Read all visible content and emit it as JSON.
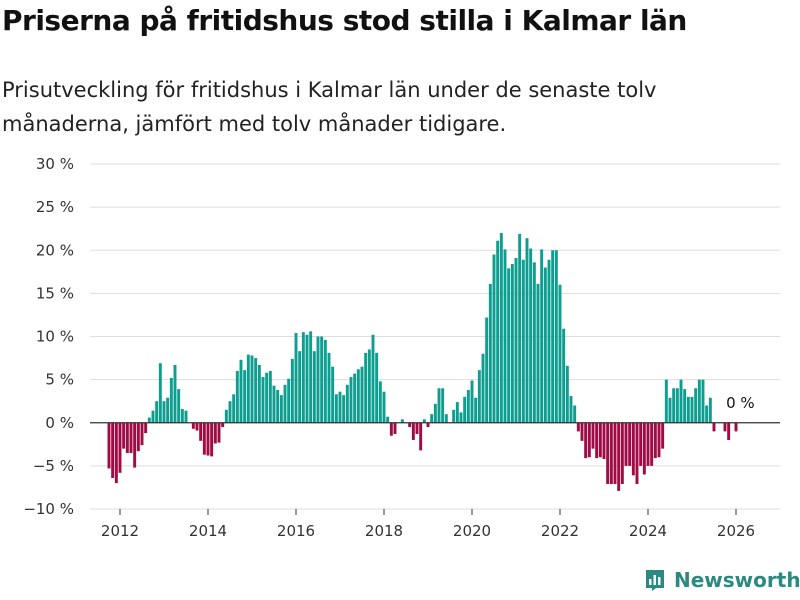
{
  "header": {
    "title": "Priserna på fritidshus stod stilla i Kalmar län",
    "subtitle": "Prisutveckling för fritidshus i Kalmar län under de senaste tolv månaderna, jämfört med tolv månader tidigare."
  },
  "brand": {
    "name": "Newsworthy",
    "icon": "bar-chart-logo-icon"
  },
  "chart_data": {
    "type": "bar",
    "title": "Priserna på fritidshus stod stilla i Kalmar län",
    "xlabel": "",
    "ylabel": "",
    "ylim": [
      -10,
      30
    ],
    "y_ticks": [
      -10,
      -5,
      0,
      5,
      10,
      15,
      20,
      25,
      30
    ],
    "y_tick_labels": [
      "−10 %",
      "−5 %",
      "0 %",
      "5 %",
      "10 %",
      "15 %",
      "20 %",
      "25 %",
      "30 %"
    ],
    "x_start": 2011.75,
    "x_step": 0.0833333,
    "x_ticks": [
      2012,
      2014,
      2016,
      2018,
      2020,
      2022,
      2024,
      2026
    ],
    "x_tick_labels": [
      "2012",
      "2014",
      "2016",
      "2018",
      "2020",
      "2022",
      "2024",
      "2026"
    ],
    "positive_color": "#0e9e90",
    "negative_color": "#a00a45",
    "annotation": {
      "text": "0 %",
      "x": 2026.1,
      "y": 0
    },
    "values": [
      -5.3,
      -6.4,
      -7.0,
      -5.8,
      -3.0,
      -3.5,
      -3.5,
      -5.2,
      -3.3,
      -2.6,
      -1.2,
      0.6,
      1.4,
      2.5,
      6.9,
      2.5,
      2.9,
      5.2,
      6.7,
      3.9,
      1.6,
      1.4,
      0.0,
      -0.7,
      -0.9,
      -2.1,
      -3.7,
      -3.8,
      -3.9,
      -2.4,
      -2.3,
      -0.5,
      1.5,
      2.5,
      3.3,
      6.0,
      7.3,
      6.1,
      7.9,
      7.8,
      7.5,
      6.7,
      5.3,
      5.8,
      6.0,
      4.3,
      3.8,
      3.2,
      4.4,
      5.1,
      7.4,
      10.4,
      8.3,
      10.5,
      10.2,
      10.6,
      8.3,
      10.0,
      10.0,
      9.6,
      8.1,
      6.5,
      3.3,
      3.6,
      3.2,
      4.4,
      5.3,
      5.7,
      6.2,
      6.5,
      8.1,
      8.5,
      10.2,
      8.1,
      4.8,
      3.6,
      0.7,
      -1.5,
      -1.3,
      0.0,
      0.4,
      0.0,
      -0.5,
      -2.0,
      -1.3,
      -3.2,
      0.4,
      -0.5,
      1.0,
      2.2,
      4.0,
      4.0,
      1.0,
      0.0,
      1.5,
      2.4,
      1.2,
      3.0,
      3.8,
      4.9,
      2.9,
      6.1,
      8.0,
      12.2,
      16.1,
      19.5,
      21.1,
      22.0,
      20.1,
      17.9,
      18.4,
      19.1,
      21.9,
      18.9,
      21.4,
      20.2,
      18.6,
      16.1,
      20.1,
      18.0,
      18.9,
      20.0,
      20.0,
      16.0,
      10.9,
      6.6,
      3.1,
      2.0,
      -1.0,
      -2.1,
      -4.1,
      -4.0,
      -3.0,
      -4.1,
      -4.0,
      -4.2,
      -7.1,
      -7.1,
      -7.1,
      -7.9,
      -7.1,
      -5.0,
      -5.0,
      -6.1,
      -7.1,
      -5.0,
      -6.0,
      -5.0,
      -5.0,
      -4.1,
      -4.0,
      -3.0,
      5.0,
      2.9,
      4.0,
      4.0,
      5.0,
      3.9,
      3.0,
      3.0,
      4.0,
      5.0,
      5.0,
      2.0,
      2.9,
      -1.0,
      0.0,
      0.0,
      -1.0,
      -2.0,
      0.0,
      -1.0
    ]
  }
}
